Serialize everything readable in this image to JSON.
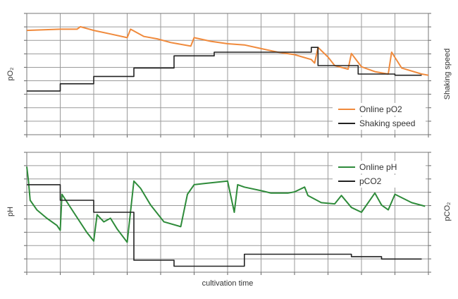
{
  "chart_data": [
    {
      "type": "line",
      "panel": "top",
      "title": "",
      "xlabel": "",
      "ylabel_left": "pO₂",
      "ylabel_right": "Shaking speed",
      "ylim": [
        0,
        10
      ],
      "legend_position": "bottom-right",
      "grid": true,
      "series": [
        {
          "name": "Online pO2",
          "color": "#f08a3c",
          "x": [
            0,
            1,
            1.5,
            1.6,
            2,
            2.5,
            3.0,
            3.1,
            3.5,
            3.9,
            4.3,
            4.9,
            5.0,
            5.5,
            6.0,
            6.5,
            7.0,
            7.5,
            8.0,
            8.5,
            8.6,
            8.7,
            9.0,
            9.2,
            9.6,
            9.7,
            10.0,
            10.4,
            10.8,
            10.9,
            11.2,
            11.8,
            12.0
          ],
          "values": [
            8.6,
            8.7,
            8.7,
            8.9,
            8.6,
            8.3,
            8.0,
            8.7,
            8.1,
            7.9,
            7.6,
            7.3,
            8.0,
            7.7,
            7.5,
            7.4,
            7.1,
            6.8,
            6.6,
            6.2,
            5.9,
            7.2,
            6.4,
            5.7,
            5.4,
            6.7,
            5.6,
            5.2,
            5.0,
            6.8,
            5.5,
            5.0,
            4.9
          ]
        },
        {
          "name": "Shaking speed",
          "color": "#222222",
          "x": [
            0,
            1,
            1,
            2,
            2,
            3.2,
            3.2,
            4.4,
            4.4,
            5.6,
            5.6,
            8.5,
            8.5,
            8.7,
            8.7,
            9.9,
            9.9,
            11.0,
            11.0,
            11.8
          ],
          "values": [
            3.6,
            3.6,
            4.2,
            4.2,
            4.8,
            4.8,
            5.5,
            5.5,
            6.5,
            6.5,
            6.8,
            6.8,
            7.2,
            7.2,
            5.7,
            5.7,
            5.0,
            5.0,
            4.9,
            4.9
          ]
        }
      ]
    },
    {
      "type": "line",
      "panel": "bottom",
      "title": "",
      "xlabel": "cultivation time",
      "ylabel_left": "pH",
      "ylabel_right": "pCO₂",
      "ylim": [
        0,
        10
      ],
      "legend_position": "top-right",
      "grid": true,
      "series": [
        {
          "name": "Online pH",
          "color": "#2e8b3a",
          "x": [
            0,
            0.05,
            0.1,
            0.3,
            0.6,
            0.9,
            1.0,
            1.05,
            1.4,
            1.8,
            2.0,
            2.1,
            2.3,
            2.5,
            2.7,
            3.0,
            3.2,
            3.4,
            3.7,
            4.1,
            4.6,
            4.8,
            5.0,
            5.3,
            6.0,
            6.2,
            6.3,
            6.5,
            7.0,
            7.3,
            7.8,
            8.0,
            8.3,
            8.4,
            8.8,
            9.2,
            9.4,
            9.7,
            10.0,
            10.4,
            10.6,
            10.8,
            11.0,
            11.5,
            11.9
          ],
          "values": [
            8.8,
            7.6,
            6.0,
            5.2,
            4.5,
            3.9,
            3.5,
            6.5,
            5.0,
            3.3,
            2.6,
            4.8,
            4.2,
            4.5,
            3.6,
            2.5,
            7.6,
            7.0,
            5.6,
            4.2,
            3.8,
            6.5,
            7.3,
            7.4,
            7.6,
            5.0,
            7.3,
            7.1,
            6.8,
            6.6,
            6.6,
            6.7,
            7.1,
            6.4,
            5.8,
            5.7,
            6.4,
            5.4,
            5.0,
            6.6,
            5.6,
            5.2,
            6.5,
            5.8,
            5.5
          ]
        },
        {
          "name": "pCO2",
          "color": "#222222",
          "x": [
            0,
            1,
            1,
            2,
            2,
            3.2,
            3.2,
            4.4,
            4.4,
            6.5,
            6.5,
            9.7,
            9.7,
            10.6,
            10.6,
            11.8
          ],
          "values": [
            7.3,
            7.3,
            6.0,
            6.0,
            5.0,
            5.0,
            1.0,
            1.0,
            0.5,
            0.5,
            1.5,
            1.5,
            1.3,
            1.3,
            1.1,
            1.1
          ]
        }
      ]
    }
  ]
}
